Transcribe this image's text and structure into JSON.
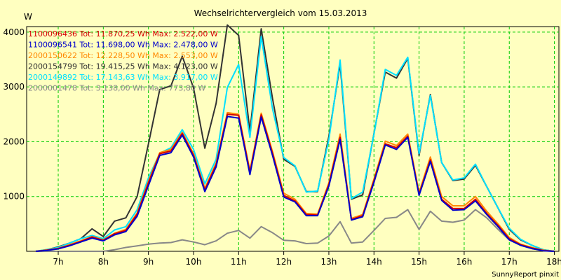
{
  "chart_data": {
    "type": "line",
    "title": "Wechselrichtervergleich vom 15.03.2013",
    "ylabel": "W",
    "xlabel": "",
    "footer": "SunnyReport pinxit",
    "ylim": [
      0,
      4100
    ],
    "xlim": [
      6.3,
      18.1
    ],
    "grid": true,
    "legend_position": "top-left",
    "x_ticks": [
      7,
      8,
      9,
      10,
      11,
      12,
      13,
      14,
      15,
      16,
      17,
      18
    ],
    "x_tick_labels": [
      "7h",
      "8h",
      "9h",
      "10h",
      "11h",
      "12h",
      "13h",
      "14h",
      "15h",
      "16h",
      "17h",
      "18h"
    ],
    "y_ticks": [
      1000,
      2000,
      3000,
      4000
    ],
    "y_tick_labels": [
      "1000",
      "2000",
      "3000",
      "4000"
    ],
    "x": [
      6.5,
      6.75,
      7.0,
      7.25,
      7.5,
      7.75,
      8.0,
      8.25,
      8.5,
      8.75,
      9.0,
      9.25,
      9.5,
      9.75,
      10.0,
      10.25,
      10.5,
      10.75,
      11.0,
      11.25,
      11.5,
      11.75,
      12.0,
      12.25,
      12.5,
      12.75,
      13.0,
      13.25,
      13.5,
      13.75,
      14.0,
      14.25,
      14.5,
      14.75,
      15.0,
      15.25,
      15.5,
      15.75,
      16.0,
      16.25,
      16.5,
      16.75,
      17.0,
      17.25,
      17.5,
      17.75,
      18.0
    ],
    "series": [
      {
        "name": "1100096436 Tot: 11.870,25 Wh Max: 2.522,00 W",
        "color": "#d40000",
        "values": [
          0,
          20,
          50,
          110,
          180,
          260,
          200,
          320,
          380,
          680,
          1250,
          1780,
          1830,
          2150,
          1750,
          1120,
          1580,
          2500,
          2480,
          1440,
          2490,
          1790,
          1020,
          920,
          670,
          660,
          1220,
          2080,
          580,
          650,
          1290,
          1960,
          1890,
          2100,
          1040,
          1670,
          950,
          780,
          780,
          950,
          690,
          470,
          230,
          120,
          60,
          15,
          0
        ]
      },
      {
        "name": "1100096541 Tot: 11.698,00 Wh Max: 2.478,00 W",
        "color": "#0000cc",
        "values": [
          0,
          15,
          45,
          100,
          170,
          240,
          190,
          300,
          360,
          640,
          1200,
          1750,
          1800,
          2120,
          1720,
          1090,
          1540,
          2460,
          2430,
          1400,
          2450,
          1750,
          990,
          900,
          650,
          650,
          1190,
          2040,
          570,
          630,
          1260,
          1940,
          1860,
          2080,
          1020,
          1640,
          930,
          750,
          760,
          920,
          670,
          450,
          210,
          110,
          50,
          10,
          0
        ]
      },
      {
        "name": "2000150622 Tot: 12.228,50 Wh Max: 2.553,00 W",
        "color": "#ff8800",
        "values": [
          0,
          25,
          55,
          120,
          190,
          270,
          210,
          330,
          400,
          700,
          1280,
          1800,
          1860,
          2170,
          1780,
          1150,
          1610,
          2530,
          2500,
          1470,
          2520,
          1820,
          1060,
          950,
          690,
          680,
          1250,
          2140,
          600,
          670,
          1320,
          2010,
          1930,
          2140,
          1070,
          1720,
          1000,
          830,
          830,
          1000,
          730,
          500,
          250,
          130,
          70,
          20,
          0
        ]
      },
      {
        "name": "2000154799 Tot: 19.415,25 Wh Max: 4.123,00 W",
        "color": "#333333",
        "values": [
          0,
          30,
          80,
          150,
          230,
          410,
          270,
          550,
          610,
          1000,
          1960,
          2950,
          3020,
          3560,
          2980,
          1880,
          2700,
          4130,
          3940,
          2190,
          4060,
          2790,
          1680,
          1550,
          1090,
          1090,
          2100,
          3420,
          950,
          1030,
          2150,
          3270,
          3160,
          3520,
          1750,
          2860,
          1620,
          1290,
          1320,
          1570,
          1180,
          790,
          400,
          210,
          110,
          30,
          0
        ]
      },
      {
        "name": "2000149892 Tot: 17.143,63 Wh Max: 3.917,00 W",
        "color": "#00e0ff",
        "values": [
          0,
          35,
          70,
          150,
          230,
          290,
          230,
          390,
          450,
          760,
          1340,
          1790,
          1890,
          2220,
          1860,
          1230,
          1680,
          2990,
          3410,
          2080,
          3920,
          2600,
          1710,
          1560,
          1080,
          1100,
          2040,
          3490,
          960,
          1080,
          2140,
          3320,
          3210,
          3540,
          1780,
          2840,
          1620,
          1300,
          1340,
          1590,
          1180,
          790,
          420,
          220,
          110,
          30,
          0
        ]
      },
      {
        "name": "2000001478 Tot: 3.138,00 Wh Max: 773,80 W",
        "color": "#888888",
        "values": [
          0,
          0,
          0,
          0,
          0,
          0,
          0,
          30,
          70,
          100,
          130,
          150,
          160,
          210,
          170,
          120,
          190,
          330,
          380,
          240,
          450,
          340,
          200,
          190,
          140,
          150,
          280,
          540,
          150,
          170,
          380,
          600,
          620,
          760,
          400,
          730,
          550,
          530,
          570,
          760,
          610,
          400,
          210,
          110,
          50,
          10,
          0
        ]
      }
    ]
  }
}
